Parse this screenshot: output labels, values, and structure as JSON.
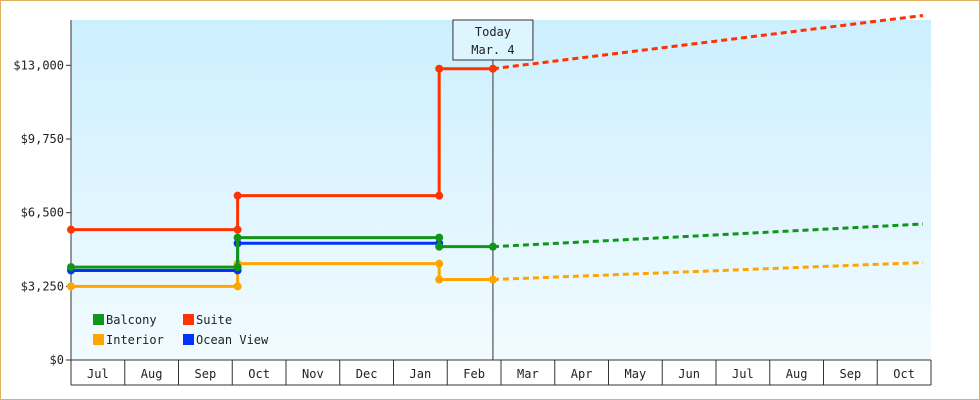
{
  "colors": {
    "balcony": "#109618",
    "suite": "#ff3300",
    "interior": "#ffa500",
    "ocean_view": "#0033ff",
    "plot_bg_top": "#ccefff",
    "plot_bg_bottom": "#f2fbff"
  },
  "today_marker": {
    "line1": "Today",
    "line2": "Mar. 4"
  },
  "chart_data": {
    "type": "line",
    "step": true,
    "x_months": [
      "Jul",
      "Aug",
      "Sep",
      "Oct",
      "Nov",
      "Dec",
      "Jan",
      "Feb",
      "Mar",
      "Apr",
      "May",
      "Jun",
      "Jul",
      "Aug",
      "Sep",
      "Oct"
    ],
    "y_ticks": [
      "$0",
      "$3,250",
      "$6,500",
      "$9,750",
      "$13,000"
    ],
    "ylim": [
      0,
      15000
    ],
    "grid": false,
    "legend_position": "bottom-left",
    "series": [
      {
        "name": "Balcony",
        "color_key": "balcony",
        "points": [
          [
            0,
            4100
          ],
          [
            3.1,
            4100
          ],
          [
            3.1,
            5400
          ],
          [
            6.85,
            5400
          ],
          [
            6.85,
            5000
          ],
          [
            7.85,
            5000
          ]
        ],
        "forecast": [
          [
            7.85,
            5000
          ],
          [
            15.85,
            6000
          ]
        ]
      },
      {
        "name": "Suite",
        "color_key": "suite",
        "points": [
          [
            0,
            5750
          ],
          [
            3.1,
            5750
          ],
          [
            3.1,
            7250
          ],
          [
            6.85,
            7250
          ],
          [
            6.85,
            12850
          ],
          [
            7.85,
            12850
          ]
        ],
        "forecast": [
          [
            7.85,
            12850
          ],
          [
            15.85,
            15200
          ]
        ]
      },
      {
        "name": "Interior",
        "color_key": "interior",
        "points": [
          [
            0,
            3250
          ],
          [
            3.1,
            3250
          ],
          [
            3.1,
            4250
          ],
          [
            6.85,
            4250
          ],
          [
            6.85,
            3550
          ],
          [
            7.85,
            3550
          ]
        ],
        "forecast": [
          [
            7.85,
            3550
          ],
          [
            15.85,
            4300
          ]
        ]
      },
      {
        "name": "Ocean View",
        "color_key": "ocean_view",
        "points": [
          [
            0,
            3950
          ],
          [
            3.1,
            3950
          ],
          [
            3.1,
            5150
          ],
          [
            6.85,
            5150
          ]
        ],
        "forecast": []
      }
    ],
    "today_x": 7.85
  }
}
